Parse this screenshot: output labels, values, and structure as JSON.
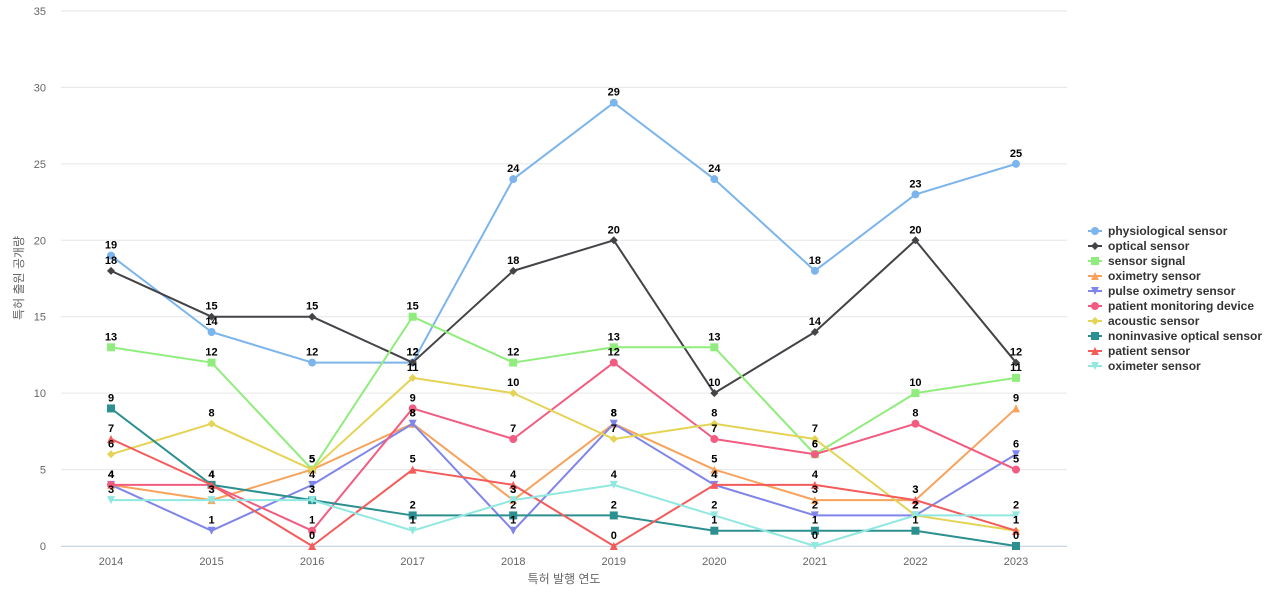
{
  "chart_data": {
    "type": "line",
    "title": "",
    "xlabel": "특허 발행 연도",
    "ylabel": "특허 출원 공개량",
    "ylim": [
      0,
      35
    ],
    "yticks": [
      0,
      5,
      10,
      15,
      20,
      25,
      30,
      35
    ],
    "grid": true,
    "legend_position": "right",
    "categories": [
      "2014",
      "2015",
      "2016",
      "2017",
      "2018",
      "2019",
      "2020",
      "2021",
      "2022",
      "2023"
    ],
    "series": [
      {
        "name": "physiological sensor",
        "color": "#7cb5ec",
        "marker": "circle",
        "values": [
          19,
          14,
          12,
          12,
          24,
          29,
          24,
          18,
          23,
          25
        ]
      },
      {
        "name": "optical sensor",
        "color": "#434348",
        "marker": "diamond",
        "values": [
          18,
          15,
          15,
          12,
          18,
          20,
          10,
          14,
          20,
          12
        ]
      },
      {
        "name": "sensor signal",
        "color": "#90ed7d",
        "marker": "square",
        "values": [
          13,
          12,
          5,
          15,
          12,
          13,
          13,
          6,
          10,
          11
        ]
      },
      {
        "name": "oximetry sensor",
        "color": "#f7a35c",
        "marker": "triangle",
        "values": [
          4,
          3,
          5,
          8,
          3,
          8,
          5,
          3,
          3,
          9
        ]
      },
      {
        "name": "pulse oximetry sensor",
        "color": "#8085e9",
        "marker": "triangle-down",
        "values": [
          4,
          1,
          4,
          8,
          1,
          8,
          4,
          2,
          2,
          6
        ]
      },
      {
        "name": "patient monitoring device",
        "color": "#f15c80",
        "marker": "circle",
        "values": [
          4,
          4,
          1,
          9,
          7,
          12,
          7,
          6,
          8,
          5
        ]
      },
      {
        "name": "acoustic sensor",
        "color": "#e4d354",
        "marker": "diamond",
        "values": [
          6,
          8,
          5,
          11,
          10,
          7,
          8,
          7,
          2,
          1
        ]
      },
      {
        "name": "noninvasive optical sensor",
        "color": "#2b908f",
        "marker": "square",
        "values": [
          9,
          4,
          3,
          2,
          2,
          2,
          1,
          1,
          1,
          0
        ]
      },
      {
        "name": "patient sensor",
        "color": "#f45b5b",
        "marker": "triangle",
        "values": [
          7,
          4,
          0,
          5,
          4,
          0,
          4,
          4,
          3,
          1
        ]
      },
      {
        "name": "oximeter sensor",
        "color": "#91e8e1",
        "marker": "triangle-down",
        "values": [
          3,
          3,
          3,
          1,
          3,
          4,
          2,
          0,
          2,
          2
        ]
      }
    ]
  }
}
